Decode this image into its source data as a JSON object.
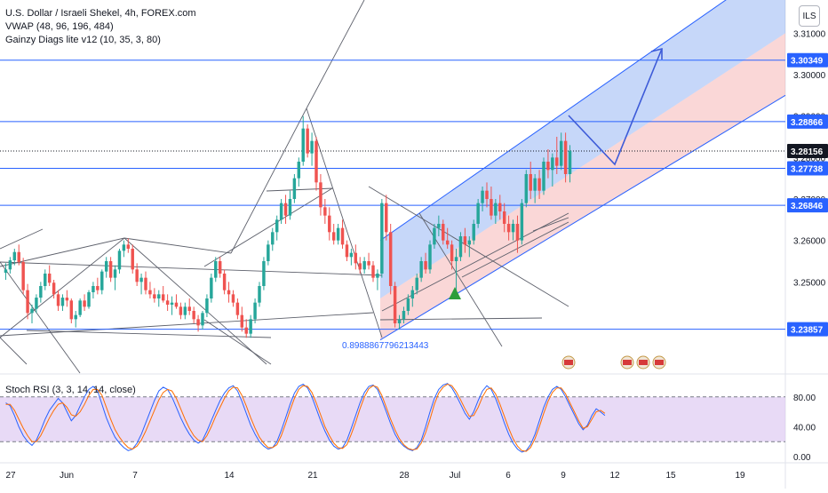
{
  "legend": {
    "symbol": "U.S. Dollar / Israeli Shekel, 4h, FOREX.com",
    "vwap": "VWAP (48, 96, 196, 484)",
    "gainzy": "Gainzy Diags lite v12 (10, 35, 3, 80)"
  },
  "currency_badge": "ILS",
  "rsi_label": "Stoch RSI (3, 3, 14, 14, close)",
  "fib_label": "0.8988867796213443",
  "colors": {
    "up": "#26a69a",
    "down": "#ef5350",
    "hline": "#2962ff",
    "channel_upper": "#5b8def",
    "channel_lower": "#f28b8b",
    "rsi_k": "#2962ff",
    "rsi_d": "#ff6d00",
    "rsi_band": "#d9c2f0",
    "arrow": "#3d5bd8"
  },
  "chart_data": [
    {
      "type": "candlestick",
      "title": "U.S. Dollar / Israeli Shekel, 4h, FOREX.com",
      "ylim": [
        3.228,
        3.318
      ],
      "y_ticks": [
        {
          "value": 3.25,
          "label": "3.25000"
        },
        {
          "value": 3.26,
          "label": "3.26000"
        },
        {
          "value": 3.27,
          "label": "3.27000"
        },
        {
          "value": 3.28,
          "label": "3.28000"
        },
        {
          "value": 3.29,
          "label": "3.29000"
        },
        {
          "value": 3.3,
          "label": "3.30000"
        },
        {
          "value": 3.31,
          "label": "3.31000"
        }
      ],
      "x_ticks": [
        "27",
        "Jun",
        "7",
        "14",
        "21",
        "28",
        "Jul",
        "6",
        "9",
        "12",
        "15",
        "19"
      ],
      "price_labels": [
        {
          "value": 3.30349,
          "label": "3.30349"
        },
        {
          "value": 3.28866,
          "label": "3.28866"
        },
        {
          "value": 3.28156,
          "label": "3.28156",
          "current": true
        },
        {
          "value": 3.27738,
          "label": "3.27738"
        },
        {
          "value": 3.26846,
          "label": "3.26846"
        },
        {
          "value": 3.23857,
          "label": "3.23857"
        }
      ],
      "candles": [
        [
          3.2522,
          3.2545,
          3.2505,
          3.253
        ],
        [
          3.253,
          3.256,
          3.252,
          3.2552
        ],
        [
          3.2552,
          3.258,
          3.254,
          3.2572
        ],
        [
          3.2572,
          3.259,
          3.254,
          3.2548
        ],
        [
          3.2548,
          3.2558,
          3.247,
          3.248
        ],
        [
          3.248,
          3.2495,
          3.241,
          3.2425
        ],
        [
          3.2425,
          3.2445,
          3.24,
          3.2435
        ],
        [
          3.2435,
          3.247,
          3.2425,
          3.2462
        ],
        [
          3.2462,
          3.25,
          3.245,
          3.249
        ],
        [
          3.249,
          3.253,
          3.248,
          3.252
        ],
        [
          3.252,
          3.254,
          3.249,
          3.2498
        ],
        [
          3.2498,
          3.2505,
          3.246,
          3.247
        ],
        [
          3.247,
          3.248,
          3.243,
          3.2442
        ],
        [
          3.2442,
          3.247,
          3.243,
          3.2462
        ],
        [
          3.2462,
          3.248,
          3.244,
          3.2455
        ],
        [
          3.2455,
          3.246,
          3.24,
          3.241
        ],
        [
          3.241,
          3.243,
          3.239,
          3.242
        ],
        [
          3.242,
          3.246,
          3.2415,
          3.2455
        ],
        [
          3.2455,
          3.247,
          3.243,
          3.244
        ],
        [
          3.244,
          3.248,
          3.2435,
          3.2475
        ],
        [
          3.2475,
          3.25,
          3.246,
          3.249
        ],
        [
          3.249,
          3.251,
          3.247,
          3.248
        ],
        [
          3.248,
          3.253,
          3.247,
          3.2525
        ],
        [
          3.2525,
          3.256,
          3.251,
          3.255
        ],
        [
          3.255,
          3.256,
          3.25,
          3.251
        ],
        [
          3.251,
          3.254,
          3.248,
          3.253
        ],
        [
          3.253,
          3.258,
          3.252,
          3.2575
        ],
        [
          3.2575,
          3.26,
          3.256,
          3.259
        ],
        [
          3.259,
          3.2605,
          3.257,
          3.258
        ],
        [
          3.258,
          3.259,
          3.252,
          3.253
        ],
        [
          3.253,
          3.2545,
          3.249,
          3.25
        ],
        [
          3.25,
          3.252,
          3.247,
          3.251
        ],
        [
          3.251,
          3.2525,
          3.247,
          3.248
        ],
        [
          3.248,
          3.25,
          3.246,
          3.247
        ],
        [
          3.247,
          3.2485,
          3.245,
          3.246
        ],
        [
          3.246,
          3.248,
          3.244,
          3.247
        ],
        [
          3.247,
          3.249,
          3.245,
          3.2455
        ],
        [
          3.2455,
          3.247,
          3.243,
          3.2445
        ],
        [
          3.2445,
          3.2465,
          3.242,
          3.245
        ],
        [
          3.245,
          3.247,
          3.2435,
          3.244
        ],
        [
          3.244,
          3.245,
          3.241,
          3.242
        ],
        [
          3.242,
          3.245,
          3.241,
          3.244
        ],
        [
          3.244,
          3.246,
          3.242,
          3.243
        ],
        [
          3.243,
          3.244,
          3.24,
          3.241
        ],
        [
          3.241,
          3.242,
          3.238,
          3.2395
        ],
        [
          3.2395,
          3.243,
          3.2385,
          3.2425
        ],
        [
          3.2425,
          3.247,
          3.2415,
          3.246
        ],
        [
          3.246,
          3.252,
          3.245,
          3.251
        ],
        [
          3.251,
          3.256,
          3.25,
          3.255
        ],
        [
          3.255,
          3.256,
          3.251,
          3.252
        ],
        [
          3.252,
          3.253,
          3.247,
          3.248
        ],
        [
          3.248,
          3.25,
          3.245,
          3.247
        ],
        [
          3.247,
          3.248,
          3.244,
          3.245
        ],
        [
          3.245,
          3.246,
          3.241,
          3.242
        ],
        [
          3.242,
          3.244,
          3.238,
          3.239
        ],
        [
          3.239,
          3.241,
          3.2365,
          3.2375
        ],
        [
          3.2375,
          3.242,
          3.2365,
          3.241
        ],
        [
          3.241,
          3.246,
          3.24,
          3.245
        ],
        [
          3.245,
          3.25,
          3.244,
          3.249
        ],
        [
          3.249,
          3.256,
          3.248,
          3.255
        ],
        [
          3.255,
          3.26,
          3.254,
          3.259
        ],
        [
          3.259,
          3.263,
          3.2575,
          3.262
        ],
        [
          3.262,
          3.266,
          3.26,
          3.265
        ],
        [
          3.265,
          3.27,
          3.264,
          3.269
        ],
        [
          3.269,
          3.271,
          3.264,
          3.266
        ],
        [
          3.266,
          3.272,
          3.265,
          3.27
        ],
        [
          3.27,
          3.276,
          3.269,
          3.275
        ],
        [
          3.275,
          3.28,
          3.273,
          3.279
        ],
        [
          3.279,
          3.29,
          3.278,
          3.287
        ],
        [
          3.287,
          3.288,
          3.28,
          3.281
        ],
        [
          3.281,
          3.286,
          3.278,
          3.284
        ],
        [
          3.284,
          3.285,
          3.272,
          3.274
        ],
        [
          3.274,
          3.276,
          3.266,
          3.268
        ],
        [
          3.268,
          3.27,
          3.264,
          3.266
        ],
        [
          3.266,
          3.268,
          3.26,
          3.262
        ],
        [
          3.262,
          3.264,
          3.259,
          3.26
        ],
        [
          3.26,
          3.264,
          3.259,
          3.263
        ],
        [
          3.263,
          3.265,
          3.258,
          3.259
        ],
        [
          3.259,
          3.26,
          3.255,
          3.256
        ],
        [
          3.256,
          3.258,
          3.254,
          3.257
        ],
        [
          3.257,
          3.259,
          3.253,
          3.2545
        ],
        [
          3.2545,
          3.256,
          3.252,
          3.253
        ],
        [
          3.253,
          3.256,
          3.252,
          3.255
        ],
        [
          3.255,
          3.257,
          3.253,
          3.254
        ],
        [
          3.254,
          3.255,
          3.25,
          3.251
        ],
        [
          3.251,
          3.253,
          3.248,
          3.252
        ],
        [
          3.252,
          3.27,
          3.251,
          3.269
        ],
        [
          3.269,
          3.271,
          3.26,
          3.262
        ],
        [
          3.262,
          3.264,
          3.247,
          3.249
        ],
        [
          3.249,
          3.25,
          3.239,
          3.24
        ],
        [
          3.24,
          3.242,
          3.2385,
          3.241
        ],
        [
          3.241,
          3.244,
          3.24,
          3.243
        ],
        [
          3.243,
          3.247,
          3.242,
          3.246
        ],
        [
          3.246,
          3.249,
          3.244,
          3.248
        ],
        [
          3.248,
          3.252,
          3.247,
          3.251
        ],
        [
          3.251,
          3.256,
          3.25,
          3.255
        ],
        [
          3.255,
          3.257,
          3.252,
          3.253
        ],
        [
          3.253,
          3.26,
          3.252,
          3.259
        ],
        [
          3.259,
          3.264,
          3.258,
          3.263
        ],
        [
          3.263,
          3.266,
          3.261,
          3.264
        ],
        [
          3.264,
          3.265,
          3.259,
          3.26
        ],
        [
          3.26,
          3.263,
          3.258,
          3.259
        ],
        [
          3.259,
          3.26,
          3.253,
          3.255
        ],
        [
          3.255,
          3.258,
          3.247,
          3.256
        ],
        [
          3.256,
          3.262,
          3.255,
          3.261
        ],
        [
          3.261,
          3.263,
          3.257,
          3.259
        ],
        [
          3.259,
          3.261,
          3.256,
          3.26
        ],
        [
          3.26,
          3.265,
          3.259,
          3.264
        ],
        [
          3.264,
          3.27,
          3.263,
          3.269
        ],
        [
          3.269,
          3.273,
          3.267,
          3.272
        ],
        [
          3.272,
          3.274,
          3.268,
          3.27
        ],
        [
          3.27,
          3.273,
          3.265,
          3.266
        ],
        [
          3.266,
          3.27,
          3.264,
          3.269
        ],
        [
          3.269,
          3.271,
          3.265,
          3.267
        ],
        [
          3.267,
          3.269,
          3.262,
          3.264
        ],
        [
          3.264,
          3.266,
          3.26,
          3.262
        ],
        [
          3.262,
          3.265,
          3.26,
          3.264
        ],
        [
          3.264,
          3.266,
          3.257,
          3.26
        ],
        [
          3.26,
          3.27,
          3.259,
          3.269
        ],
        [
          3.269,
          3.277,
          3.268,
          3.276
        ],
        [
          3.276,
          3.279,
          3.27,
          3.272
        ],
        [
          3.272,
          3.276,
          3.269,
          3.275
        ],
        [
          3.275,
          3.277,
          3.27,
          3.272
        ],
        [
          3.272,
          3.28,
          3.271,
          3.279
        ],
        [
          3.279,
          3.282,
          3.275,
          3.277
        ],
        [
          3.277,
          3.281,
          3.273,
          3.28
        ],
        [
          3.28,
          3.285,
          3.276,
          3.278
        ],
        [
          3.278,
          3.286,
          3.277,
          3.284
        ],
        [
          3.284,
          3.286,
          3.274,
          3.276
        ],
        [
          3.276,
          3.283,
          3.274,
          3.2816
        ]
      ]
    },
    {
      "type": "line",
      "title": "Stoch RSI (3, 3, 14, 14, close)",
      "ylim": [
        0,
        100
      ],
      "y_ticks": [
        {
          "value": 80,
          "label": "80.00"
        },
        {
          "value": 40,
          "label": "40.00"
        },
        {
          "value": 0,
          "label": "0.00"
        }
      ],
      "band": [
        20,
        80
      ],
      "series": [
        {
          "values": [
            72,
            68,
            55,
            40,
            28,
            20,
            15,
            22,
            35,
            50,
            62,
            70,
            78,
            72,
            60,
            48,
            55,
            68,
            80,
            90,
            94,
            88,
            70,
            52,
            38,
            26,
            18,
            12,
            8,
            10,
            18,
            30,
            45,
            60,
            75,
            88,
            93,
            90,
            80,
            66,
            52,
            40,
            30,
            22,
            18,
            22,
            34,
            48,
            62,
            75,
            85,
            92,
            95,
            88,
            74,
            58,
            42,
            30,
            20,
            14,
            10,
            12,
            20,
            35,
            52,
            70,
            85,
            94,
            97,
            92,
            80,
            64,
            48,
            34,
            22,
            14,
            10,
            12,
            22,
            38,
            55,
            72,
            86,
            94,
            96,
            90,
            76,
            60,
            44,
            30,
            20,
            14,
            10,
            8,
            12,
            22,
            40,
            60,
            78,
            90,
            96,
            98,
            92,
            82,
            70,
            58,
            50,
            60,
            75,
            88,
            95,
            90,
            78,
            62,
            45,
            30,
            18,
            10,
            6,
            8,
            16,
            30,
            48,
            66,
            80,
            90,
            94,
            90,
            80,
            68,
            56,
            44,
            36,
            42,
            55,
            64,
            60,
            55
          ]
        },
        {
          "values": [
            70,
            70,
            62,
            50,
            38,
            28,
            20,
            20,
            28,
            40,
            52,
            62,
            70,
            72,
            66,
            56,
            54,
            60,
            70,
            82,
            90,
            90,
            82,
            66,
            50,
            36,
            26,
            18,
            12,
            10,
            14,
            22,
            34,
            48,
            62,
            76,
            86,
            90,
            88,
            78,
            64,
            50,
            38,
            28,
            22,
            20,
            28,
            40,
            54,
            66,
            78,
            88,
            93,
            92,
            82,
            68,
            52,
            38,
            26,
            18,
            12,
            12,
            16,
            28,
            44,
            62,
            78,
            90,
            95,
            94,
            86,
            72,
            56,
            40,
            28,
            18,
            12,
            11,
            16,
            30,
            46,
            64,
            80,
            91,
            95,
            93,
            82,
            66,
            50,
            36,
            24,
            16,
            11,
            9,
            10,
            18,
            32,
            50,
            70,
            85,
            93,
            97,
            95,
            87,
            76,
            64,
            54,
            55,
            66,
            80,
            90,
            92,
            84,
            70,
            54,
            38,
            24,
            14,
            8,
            7,
            12,
            24,
            40,
            58,
            74,
            86,
            92,
            92,
            84,
            72,
            60,
            48,
            38,
            40,
            50,
            60,
            62,
            58
          ]
        }
      ]
    }
  ]
}
